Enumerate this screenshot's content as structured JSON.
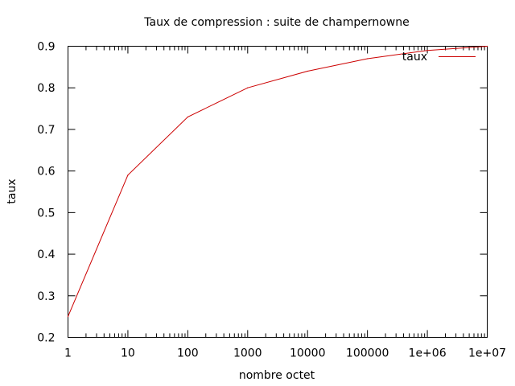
{
  "chart_data": {
    "type": "line",
    "title": "Taux de compression : suite de champernowne",
    "xlabel": "nombre octet",
    "ylabel": "taux",
    "x_scale": "log",
    "xlim": [
      1,
      10000000
    ],
    "ylim": [
      0.2,
      0.9
    ],
    "x_ticks": [
      {
        "value": 1,
        "label": "1"
      },
      {
        "value": 10,
        "label": "10"
      },
      {
        "value": 100,
        "label": "100"
      },
      {
        "value": 1000,
        "label": "1000"
      },
      {
        "value": 10000,
        "label": "10000"
      },
      {
        "value": 100000,
        "label": "100000"
      },
      {
        "value": 1000000,
        "label": "1e+06"
      },
      {
        "value": 10000000,
        "label": "1e+07"
      }
    ],
    "y_ticks": [
      {
        "value": 0.2,
        "label": "0.2"
      },
      {
        "value": 0.3,
        "label": "0.3"
      },
      {
        "value": 0.4,
        "label": "0.4"
      },
      {
        "value": 0.5,
        "label": "0.5"
      },
      {
        "value": 0.6,
        "label": "0.6"
      },
      {
        "value": 0.7,
        "label": "0.7"
      },
      {
        "value": 0.8,
        "label": "0.8"
      },
      {
        "value": 0.9,
        "label": "0.9"
      }
    ],
    "grid": false,
    "legend_position": "top-right",
    "series": [
      {
        "name": "taux",
        "color": "#cc0000",
        "x": [
          1,
          10,
          100,
          1000,
          10000,
          100000,
          1000000,
          10000000
        ],
        "y": [
          0.25,
          0.59,
          0.73,
          0.8,
          0.84,
          0.87,
          0.89,
          0.9
        ]
      }
    ]
  }
}
